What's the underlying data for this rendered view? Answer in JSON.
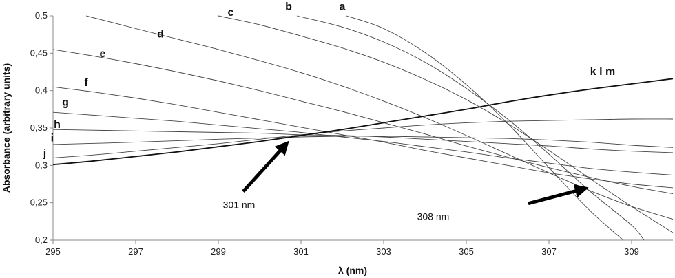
{
  "chart_data": {
    "type": "line",
    "xlabel": "λ (nm)",
    "ylabel": "Absorbance (arbitrary units)",
    "xlim": [
      295,
      310
    ],
    "ylim": [
      0.2,
      0.5
    ],
    "x_ticks": [
      "295",
      "297",
      "299",
      "301",
      "303",
      "305",
      "307",
      "309"
    ],
    "y_ticks": [
      "0,2",
      "0,25",
      "0,3",
      "0,35",
      "0,4",
      "0,45",
      "0,5"
    ],
    "grid": false,
    "series": [
      {
        "name": "a",
        "points": [
          [
            302.1,
            0.5
          ],
          [
            303,
            0.483
          ],
          [
            304,
            0.451
          ],
          [
            305,
            0.408
          ],
          [
            306,
            0.356
          ],
          [
            307,
            0.297
          ],
          [
            308,
            0.239
          ],
          [
            308.8,
            0.2
          ]
        ]
      },
      {
        "name": "b",
        "points": [
          [
            300.9,
            0.5
          ],
          [
            302,
            0.485
          ],
          [
            303,
            0.465
          ],
          [
            304,
            0.438
          ],
          [
            305,
            0.403
          ],
          [
            306,
            0.362
          ],
          [
            307,
            0.315
          ],
          [
            308,
            0.265
          ],
          [
            309,
            0.22
          ],
          [
            309.3,
            0.2
          ]
        ]
      },
      {
        "name": "c",
        "points": [
          [
            299,
            0.5
          ],
          [
            300,
            0.488
          ],
          [
            301,
            0.473
          ],
          [
            302,
            0.457
          ],
          [
            303,
            0.438
          ],
          [
            304,
            0.415
          ],
          [
            305,
            0.388
          ],
          [
            306,
            0.356
          ],
          [
            307,
            0.32
          ],
          [
            308,
            0.282
          ],
          [
            309,
            0.245
          ],
          [
            310,
            0.21
          ]
        ]
      },
      {
        "name": "d",
        "points": [
          [
            295.8,
            0.5
          ],
          [
            297,
            0.483
          ],
          [
            298,
            0.469
          ],
          [
            299,
            0.455
          ],
          [
            300,
            0.44
          ],
          [
            301,
            0.424
          ],
          [
            302,
            0.406
          ],
          [
            303,
            0.386
          ],
          [
            304,
            0.364
          ],
          [
            305,
            0.34
          ],
          [
            306,
            0.315
          ],
          [
            307,
            0.29
          ],
          [
            308,
            0.266
          ],
          [
            309,
            0.245
          ],
          [
            310,
            0.228
          ]
        ]
      },
      {
        "name": "e",
        "points": [
          [
            295,
            0.455
          ],
          [
            296,
            0.446
          ],
          [
            297,
            0.436
          ],
          [
            298,
            0.425
          ],
          [
            299,
            0.413
          ],
          [
            300,
            0.4
          ],
          [
            301,
            0.386
          ],
          [
            302,
            0.372
          ],
          [
            303,
            0.357
          ],
          [
            304,
            0.342
          ],
          [
            305,
            0.326
          ],
          [
            306,
            0.311
          ],
          [
            307,
            0.297
          ],
          [
            308,
            0.284
          ],
          [
            309,
            0.272
          ],
          [
            310,
            0.262
          ]
        ]
      },
      {
        "name": "f",
        "points": [
          [
            295,
            0.405
          ],
          [
            296,
            0.398
          ],
          [
            297,
            0.39
          ],
          [
            298,
            0.381
          ],
          [
            299,
            0.371
          ],
          [
            300,
            0.361
          ],
          [
            301,
            0.351
          ],
          [
            302,
            0.341
          ],
          [
            303,
            0.331
          ],
          [
            304,
            0.32
          ],
          [
            305,
            0.31
          ],
          [
            306,
            0.3
          ],
          [
            307,
            0.29
          ],
          [
            308,
            0.282
          ],
          [
            309,
            0.275
          ],
          [
            310,
            0.27
          ]
        ]
      },
      {
        "name": "g",
        "points": [
          [
            295,
            0.371
          ],
          [
            296,
            0.367
          ],
          [
            297,
            0.363
          ],
          [
            298,
            0.359
          ],
          [
            299,
            0.354
          ],
          [
            300,
            0.349
          ],
          [
            301,
            0.344
          ],
          [
            302,
            0.338
          ],
          [
            303,
            0.332
          ],
          [
            304,
            0.325
          ],
          [
            305,
            0.318
          ],
          [
            306,
            0.31
          ],
          [
            307,
            0.303
          ],
          [
            308,
            0.296
          ],
          [
            309,
            0.291
          ],
          [
            310,
            0.287
          ]
        ]
      },
      {
        "name": "h",
        "points": [
          [
            295,
            0.348
          ],
          [
            297,
            0.346
          ],
          [
            299,
            0.344
          ],
          [
            300,
            0.343
          ],
          [
            301,
            0.341
          ],
          [
            302,
            0.34
          ],
          [
            303,
            0.338
          ],
          [
            304,
            0.335
          ],
          [
            305,
            0.332
          ],
          [
            306,
            0.329
          ],
          [
            307,
            0.326
          ],
          [
            308,
            0.322
          ],
          [
            309,
            0.319
          ],
          [
            310,
            0.317
          ]
        ]
      },
      {
        "name": "i",
        "points": [
          [
            295,
            0.328
          ],
          [
            297,
            0.331
          ],
          [
            299,
            0.335
          ],
          [
            301,
            0.338
          ],
          [
            302,
            0.339
          ],
          [
            303,
            0.339
          ],
          [
            304,
            0.338
          ],
          [
            305,
            0.337
          ],
          [
            306,
            0.336
          ],
          [
            307,
            0.334
          ],
          [
            308,
            0.331
          ],
          [
            309,
            0.327
          ],
          [
            310,
            0.324
          ]
        ]
      },
      {
        "name": "j",
        "points": [
          [
            295,
            0.31
          ],
          [
            296,
            0.314
          ],
          [
            297,
            0.319
          ],
          [
            298,
            0.324
          ],
          [
            299,
            0.329
          ],
          [
            300,
            0.335
          ],
          [
            301,
            0.341
          ],
          [
            302,
            0.346
          ],
          [
            303,
            0.35
          ],
          [
            304,
            0.354
          ],
          [
            305,
            0.357
          ],
          [
            306,
            0.359
          ],
          [
            307,
            0.36
          ],
          [
            308,
            0.361
          ],
          [
            309,
            0.362
          ],
          [
            310,
            0.362
          ]
        ]
      },
      {
        "name": "k l m",
        "points": [
          [
            295,
            0.301
          ],
          [
            296,
            0.306
          ],
          [
            297,
            0.312
          ],
          [
            298,
            0.318
          ],
          [
            299,
            0.325
          ],
          [
            300,
            0.332
          ],
          [
            301,
            0.34
          ],
          [
            302,
            0.348
          ],
          [
            303,
            0.357
          ],
          [
            304,
            0.366
          ],
          [
            305,
            0.375
          ],
          [
            306,
            0.385
          ],
          [
            307,
            0.394
          ],
          [
            308,
            0.402
          ],
          [
            309,
            0.409
          ],
          [
            310,
            0.416
          ]
        ]
      }
    ],
    "curve_labels": [
      {
        "text": "a",
        "x": 302.0,
        "y": 0.508
      },
      {
        "text": "b",
        "x": 300.7,
        "y": 0.508
      },
      {
        "text": "c",
        "x": 299.3,
        "y": 0.5
      },
      {
        "text": "d",
        "x": 297.6,
        "y": 0.471
      },
      {
        "text": "e",
        "x": 296.2,
        "y": 0.445
      },
      {
        "text": "f",
        "x": 295.8,
        "y": 0.406
      },
      {
        "text": "g",
        "x": 295.3,
        "y": 0.38
      },
      {
        "text": "h",
        "x": 295.1,
        "y": 0.35
      },
      {
        "text": "i",
        "x": 294.98,
        "y": 0.332
      },
      {
        "text": "j",
        "x": 294.8,
        "y": 0.312
      },
      {
        "text": "k l m",
        "x": 308.3,
        "y": 0.421
      }
    ],
    "annotations": [
      {
        "text": "301 nm",
        "text_x": 299.5,
        "text_y": 0.243,
        "from": [
          299.6,
          0.265
        ],
        "to": [
          300.6,
          0.326
        ]
      },
      {
        "text": "308 nm",
        "text_x": 304.2,
        "text_y": 0.227,
        "from": [
          306.5,
          0.249
        ],
        "to": [
          307.8,
          0.268
        ]
      }
    ]
  }
}
